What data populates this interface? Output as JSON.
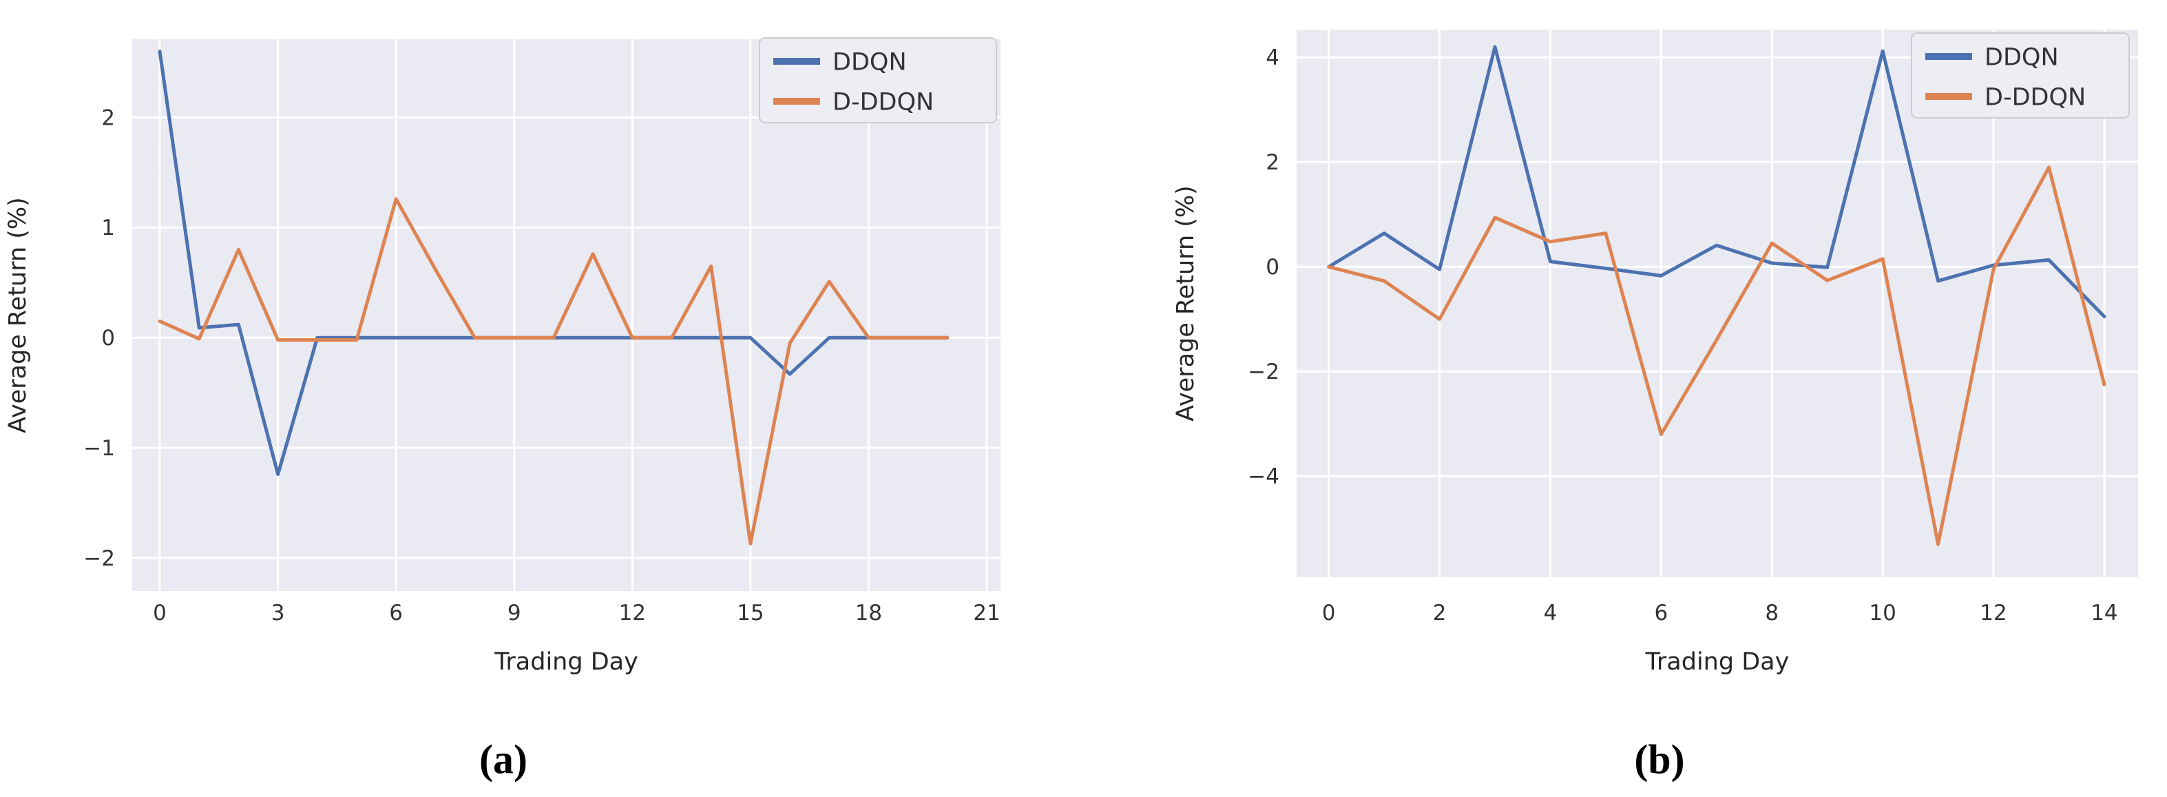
{
  "figure": {
    "captions": [
      "(a)",
      "(b)"
    ]
  },
  "colors": {
    "ddqn": "#4C72B0",
    "d_ddqn": "#DD8452",
    "plot_bg": "#eaeaf2",
    "grid": "#ffffff",
    "tick_text": "#333333",
    "axis_label_text": "#262626",
    "legend_bg": "#ededf4",
    "legend_border": "#cccccc"
  },
  "chart_data": [
    {
      "id": "a",
      "type": "line",
      "title": "",
      "xlabel": "Trading Day",
      "ylabel": "Average Return (%)",
      "x": [
        0,
        1,
        2,
        3,
        4,
        5,
        6,
        7,
        8,
        9,
        10,
        11,
        12,
        13,
        14,
        15,
        16,
        17,
        18,
        19,
        20
      ],
      "series": [
        {
          "name": "DDQN",
          "color_key": "ddqn",
          "values": [
            2.6,
            0.09,
            0.12,
            -1.24,
            0.0,
            0.0,
            0.0,
            0.0,
            0.0,
            0.0,
            0.0,
            0.0,
            0.0,
            0.0,
            0.0,
            0.0,
            -0.33,
            0.0,
            0.0,
            0.0,
            0.0
          ]
        },
        {
          "name": "D-DDQN",
          "color_key": "d_ddqn",
          "values": [
            0.15,
            -0.01,
            0.8,
            -0.02,
            -0.02,
            -0.02,
            1.26,
            0.62,
            0.0,
            0.0,
            0.0,
            0.76,
            0.0,
            0.0,
            0.65,
            -1.87,
            -0.05,
            0.51,
            0.0,
            0.0,
            0.0
          ]
        }
      ],
      "xticks": [
        0,
        3,
        6,
        9,
        12,
        15,
        18,
        21
      ],
      "yticks": [
        -2,
        -1,
        0,
        1,
        2
      ],
      "xlim": [
        -0.7,
        21.35
      ],
      "ylim": [
        -2.3,
        2.71
      ],
      "grid": true,
      "legend_position": "upper right",
      "legend_entries": [
        "DDQN",
        "D-DDQN"
      ]
    },
    {
      "id": "b",
      "type": "line",
      "title": "",
      "xlabel": "Trading Day",
      "ylabel": "Average Return (%)",
      "x": [
        0,
        1,
        2,
        3,
        4,
        5,
        6,
        7,
        8,
        9,
        10,
        11,
        12,
        13,
        14
      ],
      "series": [
        {
          "name": "DDQN",
          "color_key": "ddqn",
          "values": [
            0.0,
            0.64,
            -0.05,
            4.2,
            0.1,
            -0.03,
            -0.17,
            0.41,
            0.07,
            -0.01,
            4.12,
            -0.27,
            0.03,
            0.13,
            -0.95
          ]
        },
        {
          "name": "D-DDQN",
          "color_key": "d_ddqn",
          "values": [
            0.0,
            -0.27,
            -1.0,
            0.94,
            0.48,
            0.64,
            -3.2,
            -1.4,
            0.45,
            -0.26,
            0.15,
            -5.3,
            -0.05,
            1.9,
            -2.25
          ]
        }
      ],
      "xticks": [
        0,
        2,
        4,
        6,
        8,
        10,
        12,
        14
      ],
      "yticks": [
        -4,
        -2,
        0,
        2,
        4
      ],
      "xlim": [
        -0.58,
        14.61
      ],
      "ylim": [
        -5.93,
        4.53
      ],
      "grid": true,
      "legend_position": "upper right",
      "legend_entries": [
        "DDQN",
        "D-DDQN"
      ]
    }
  ]
}
